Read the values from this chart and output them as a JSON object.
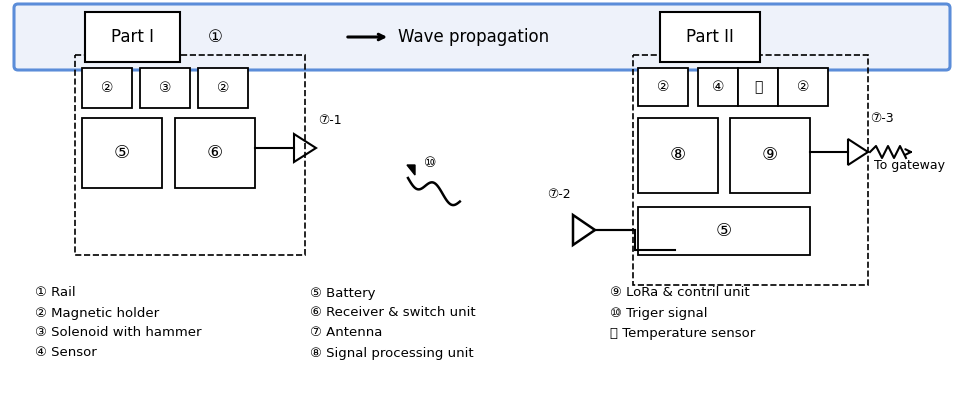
{
  "bg_color": "#ffffff",
  "figsize": [
    9.62,
    4.07
  ],
  "dpi": 100,
  "rail_color": "#5b8dd9",
  "rail_fill": "#eef2fa",
  "legend": [
    [
      35,
      293,
      "① Rail"
    ],
    [
      35,
      313,
      "② Magnetic holder"
    ],
    [
      35,
      333,
      "③ Solenoid with hammer"
    ],
    [
      35,
      353,
      "④ Sensor"
    ],
    [
      310,
      293,
      "⑤ Battery"
    ],
    [
      310,
      313,
      "⑥ Receiver & switch unit"
    ],
    [
      310,
      333,
      "⑦ Antenna"
    ],
    [
      310,
      353,
      "⑧ Signal processing unit"
    ],
    [
      610,
      293,
      "⑨ LoRa & contril unit"
    ],
    [
      610,
      313,
      "⑩ Triger signal"
    ],
    [
      610,
      333,
      "⑪ Temperature sensor"
    ]
  ]
}
